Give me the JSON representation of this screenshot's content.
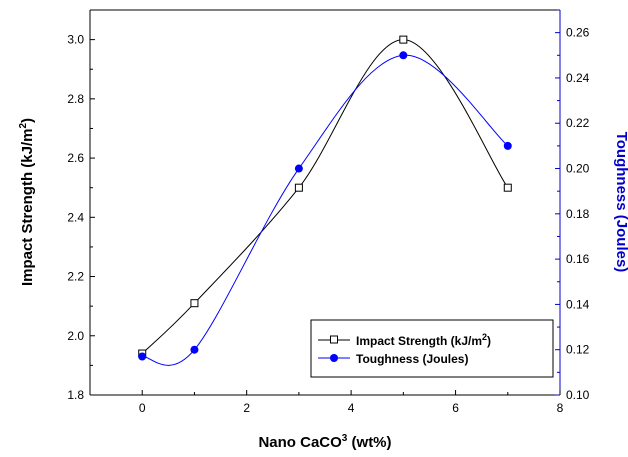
{
  "chart_data": {
    "type": "line",
    "x_axis": {
      "label": "Nano CaCO",
      "label_sup": "3",
      "label_tail": " (wt%)",
      "range": [
        -1,
        8
      ],
      "ticks": [
        0,
        2,
        4,
        6,
        8
      ],
      "tick_labels": [
        "0",
        "2",
        "4",
        "6",
        "8"
      ]
    },
    "y_axis_left": {
      "label": "Impact Strength (kJ/m",
      "label_sup": "2",
      "label_tail": ")",
      "range": [
        1.8,
        3.1
      ],
      "ticks": [
        1.8,
        2.0,
        2.2,
        2.4,
        2.6,
        2.8,
        3.0
      ],
      "tick_labels": [
        "1.8",
        "2.0",
        "2.2",
        "2.4",
        "2.6",
        "2.8",
        "3.0"
      ]
    },
    "y_axis_right": {
      "label": "Toughness (Joules)",
      "range": [
        0.1,
        0.27
      ],
      "ticks": [
        0.1,
        0.12,
        0.14,
        0.16,
        0.18,
        0.2,
        0.22,
        0.24,
        0.26
      ],
      "tick_labels": [
        "0.10",
        "0.12",
        "0.14",
        "0.16",
        "0.18",
        "0.20",
        "0.22",
        "0.24",
        "0.26"
      ]
    },
    "series": [
      {
        "name": "Impact Strength (kJ/m",
        "name_sup": "2",
        "name_tail": ")",
        "axis": "left",
        "color": "#000000",
        "marker": "open-square",
        "x": [
          0,
          1,
          3,
          5,
          7
        ],
        "y": [
          1.94,
          2.11,
          2.5,
          3.0,
          2.5
        ]
      },
      {
        "name": "Toughness (Joules)",
        "axis": "right",
        "color": "#0000ff",
        "marker": "filled-circle",
        "x": [
          0,
          1,
          3,
          5,
          7
        ],
        "y": [
          0.117,
          0.12,
          0.2,
          0.25,
          0.21
        ]
      }
    ],
    "legend_position": "bottom-right",
    "grid": false,
    "colors": {
      "left_axis": "#000000",
      "right_axis": "#0000cc"
    }
  }
}
